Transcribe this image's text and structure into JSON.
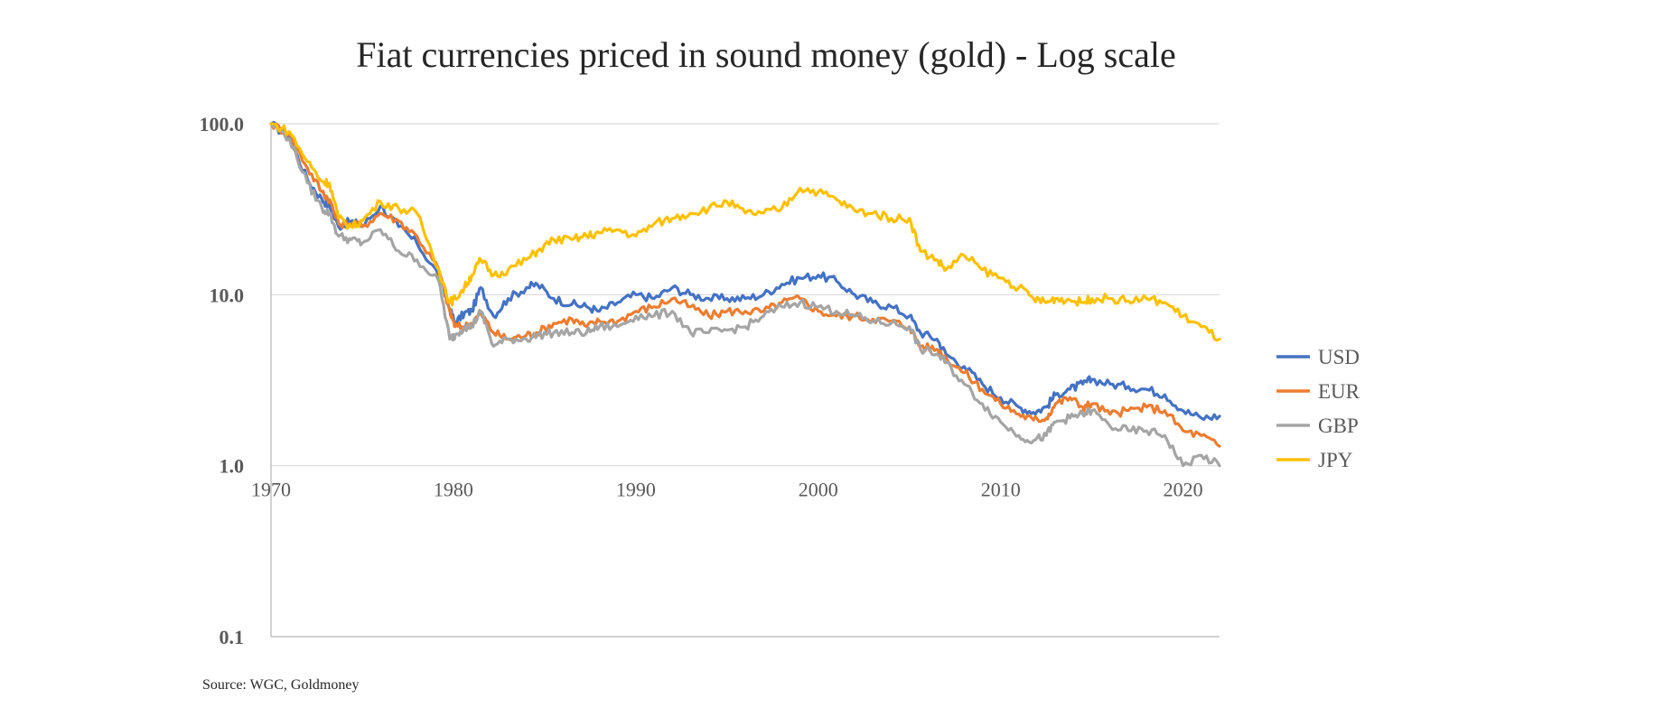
{
  "source_note": "Source: WGC, Goldmoney",
  "chart_data": {
    "type": "line",
    "title": "Fiat currencies priced in sound money (gold) - Log scale",
    "xlabel": "",
    "ylabel": "",
    "y_scale": "log",
    "ylim": [
      0.1,
      100
    ],
    "xlim": [
      1970,
      2022
    ],
    "y_ticks": [
      "100.0",
      "10.0",
      "1.0",
      "0.1"
    ],
    "y_tick_values": [
      100,
      10,
      1,
      0.1
    ],
    "x_ticks": [
      "1970",
      "1980",
      "1990",
      "2000",
      "2010",
      "2020"
    ],
    "x_tick_values": [
      1970,
      1980,
      1990,
      2000,
      2010,
      2020
    ],
    "grid": "horizontal",
    "legend_position": "right",
    "series": [
      {
        "name": "USD",
        "color": "#4472C4",
        "x": [
          1970,
          1971,
          1972,
          1972.8,
          1973.2,
          1973.7,
          1974.4,
          1975,
          1976,
          1977,
          1978,
          1979.2,
          1979.8,
          1980.1,
          1980.6,
          1981,
          1981.5,
          1982.2,
          1983,
          1984,
          1984.6,
          1985.5,
          1986.5,
          1987.3,
          1988,
          1989,
          1990,
          1991,
          1992,
          1993,
          1994,
          1995,
          1996,
          1997,
          1998,
          1999,
          2000,
          2001,
          2002,
          2003,
          2004,
          2005,
          2005.6,
          2006.5,
          2007,
          2008,
          2009,
          2010,
          2011,
          2011.8,
          2012.5,
          2013,
          2013.8,
          2014.5,
          2015,
          2016,
          2017,
          2018,
          2019,
          2020,
          2021,
          2022
        ],
        "values": [
          100,
          83,
          47,
          36,
          33,
          25,
          27,
          25,
          33,
          25,
          20,
          13,
          8.2,
          6.8,
          7.8,
          8,
          11,
          7.5,
          9.5,
          11,
          11.5,
          9.5,
          8.8,
          8.5,
          8,
          9,
          10,
          9.5,
          11,
          10,
          9.5,
          9.5,
          9.5,
          10,
          11.5,
          12.5,
          13,
          12,
          10,
          9,
          8.5,
          7.5,
          6,
          5.5,
          4.5,
          3.8,
          3.0,
          2.5,
          2.2,
          2.05,
          2.2,
          2.6,
          2.8,
          3.0,
          3.2,
          3.0,
          2.9,
          2.8,
          2.6,
          2.1,
          1.9,
          1.95
        ]
      },
      {
        "name": "EUR",
        "color": "#ED7D31",
        "x": [
          1970,
          1971,
          1972,
          1972.8,
          1973.2,
          1973.7,
          1974.4,
          1975,
          1976,
          1977,
          1978,
          1979.2,
          1979.8,
          1980.1,
          1980.6,
          1981,
          1981.5,
          1982.2,
          1983,
          1984,
          1984.6,
          1985.5,
          1986.5,
          1987.3,
          1988,
          1989,
          1990,
          1991,
          1992,
          1993,
          1994,
          1995,
          1996,
          1997,
          1998,
          1999,
          2000,
          2001,
          2002,
          2003,
          2004,
          2005,
          2005.6,
          2006.5,
          2007,
          2008,
          2009,
          2010,
          2011,
          2011.8,
          2012.5,
          2013,
          2013.8,
          2014.5,
          2015,
          2016,
          2017,
          2018,
          2019,
          2020,
          2021,
          2022
        ],
        "values": [
          100,
          87,
          55,
          40,
          36,
          26,
          26,
          25,
          30,
          27,
          22,
          14,
          8.0,
          6.5,
          6.5,
          6.8,
          7.8,
          6.0,
          5.5,
          5.8,
          6.0,
          6.8,
          7.2,
          6.5,
          7.0,
          7.0,
          8.0,
          8.5,
          9.5,
          8.5,
          7.5,
          8.0,
          8.0,
          8.0,
          9.0,
          9.5,
          8.0,
          7.5,
          7.5,
          7.2,
          7.0,
          6.5,
          5.0,
          4.8,
          4.3,
          3.5,
          2.8,
          2.3,
          2.0,
          1.85,
          1.9,
          2.3,
          2.5,
          2.2,
          2.3,
          2.0,
          2.1,
          2.2,
          2.1,
          1.6,
          1.5,
          1.3
        ]
      },
      {
        "name": "GBP",
        "color": "#A5A5A5",
        "x": [
          1970,
          1971,
          1972,
          1972.8,
          1973.2,
          1973.7,
          1974.4,
          1975,
          1976,
          1977,
          1978,
          1979.2,
          1979.8,
          1980.1,
          1980.6,
          1981,
          1981.5,
          1982.2,
          1983,
          1984,
          1984.6,
          1985.5,
          1986.5,
          1987.3,
          1988,
          1989,
          1990,
          1991,
          1992,
          1993,
          1994,
          1995,
          1996,
          1997,
          1998,
          1999,
          2000,
          2001,
          2002,
          2003,
          2004,
          2005,
          2005.6,
          2006.5,
          2007,
          2008,
          2009,
          2010,
          2011,
          2011.8,
          2012.5,
          2013,
          2013.8,
          2014.5,
          2015,
          2016,
          2017,
          2018,
          2019,
          2020,
          2021,
          2022
        ],
        "values": [
          100,
          82,
          45,
          32,
          30,
          22,
          21,
          20,
          24,
          18,
          16,
          12,
          5.5,
          5.8,
          6.5,
          6.5,
          8.0,
          5.0,
          5.5,
          5.5,
          5.8,
          6.0,
          6.0,
          6.0,
          6.5,
          6.5,
          7.5,
          7.5,
          8.0,
          6.0,
          6.0,
          6.2,
          6.5,
          7.5,
          8.5,
          9.0,
          8.5,
          8.0,
          7.5,
          7.0,
          6.8,
          6.5,
          4.8,
          4.5,
          4.0,
          3.0,
          2.3,
          1.8,
          1.5,
          1.4,
          1.5,
          1.8,
          1.9,
          2.0,
          2.1,
          1.7,
          1.6,
          1.6,
          1.5,
          1.0,
          1.15,
          1.0
        ]
      },
      {
        "name": "JPY",
        "color": "#FFC000",
        "x": [
          1970,
          1971,
          1972,
          1972.8,
          1973.2,
          1973.7,
          1974.4,
          1975,
          1976,
          1977,
          1978,
          1979.2,
          1979.8,
          1980.1,
          1980.6,
          1981,
          1981.5,
          1982.2,
          1983,
          1984,
          1984.6,
          1985.5,
          1986.5,
          1987.3,
          1988,
          1989,
          1990,
          1991,
          1992,
          1993,
          1994,
          1995,
          1996,
          1997,
          1998,
          1999,
          2000,
          2001,
          2002,
          2003,
          2004,
          2005,
          2005.6,
          2006.5,
          2007,
          2008,
          2009,
          2010,
          2011,
          2011.8,
          2012.5,
          2013,
          2013.8,
          2014.5,
          2015,
          2016,
          2017,
          2018,
          2019,
          2020,
          2021,
          2022
        ],
        "values": [
          100,
          90,
          60,
          46,
          45,
          28,
          25,
          27,
          35,
          32,
          30,
          14,
          9.0,
          9.5,
          11,
          13,
          16,
          13,
          14,
          16,
          18,
          21,
          21,
          22,
          23,
          24,
          22,
          26,
          28,
          30,
          32,
          35,
          30,
          30,
          32,
          42,
          40,
          36,
          31,
          30,
          28,
          28,
          18,
          16,
          14,
          17,
          14,
          12.5,
          11,
          9.5,
          9.0,
          9.5,
          9.3,
          9.0,
          9.5,
          9.5,
          9.2,
          9.5,
          9.0,
          7.5,
          6.5,
          5.5
        ]
      }
    ]
  }
}
